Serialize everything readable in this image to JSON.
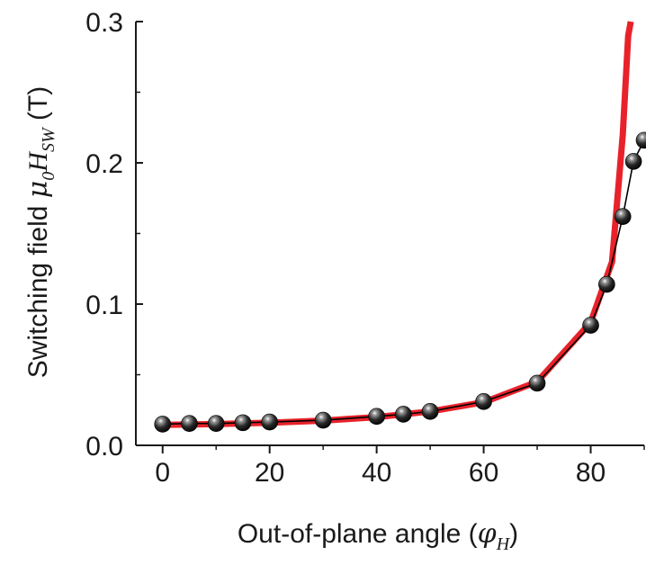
{
  "chart_data": {
    "type": "line",
    "xlabel": {
      "prefix": "Out-of-plane angle (",
      "symbol": "φ",
      "subscript": "H",
      "suffix": ")"
    },
    "ylabel": {
      "prefix": "Switching field ",
      "symbol": "μ",
      "symbol_subscript": "0",
      "variable": "H",
      "subscript": "SW",
      "suffix": " (T)"
    },
    "xlim": [
      -5,
      90
    ],
    "ylim": [
      0,
      0.3
    ],
    "x_ticks": [
      0,
      20,
      40,
      60,
      80
    ],
    "x_tick_labels": [
      "0",
      "20",
      "40",
      "60",
      "80"
    ],
    "y_ticks": [
      0.0,
      0.1,
      0.2,
      0.3
    ],
    "y_tick_labels": [
      "0.0",
      "0.1",
      "0.2",
      "0.3"
    ],
    "grid": false,
    "series": [
      {
        "style": "markers-with-thin-line",
        "color": "#000000",
        "x": [
          0,
          5,
          10,
          15,
          20,
          30,
          40,
          45,
          50,
          60,
          70,
          80,
          83,
          86,
          88,
          90
        ],
        "y": [
          0.015,
          0.0155,
          0.0155,
          0.016,
          0.0165,
          0.0178,
          0.0205,
          0.022,
          0.024,
          0.031,
          0.044,
          0.085,
          0.114,
          0.162,
          0.201,
          0.216
        ]
      },
      {
        "style": "thick-line",
        "color": "#e8222a",
        "x": [
          0,
          10,
          20,
          30,
          40,
          50,
          60,
          70,
          80,
          84,
          86,
          87,
          87.5
        ],
        "y": [
          0.0145,
          0.015,
          0.016,
          0.0175,
          0.02,
          0.024,
          0.0305,
          0.045,
          0.087,
          0.13,
          0.22,
          0.29,
          0.3
        ]
      }
    ]
  }
}
